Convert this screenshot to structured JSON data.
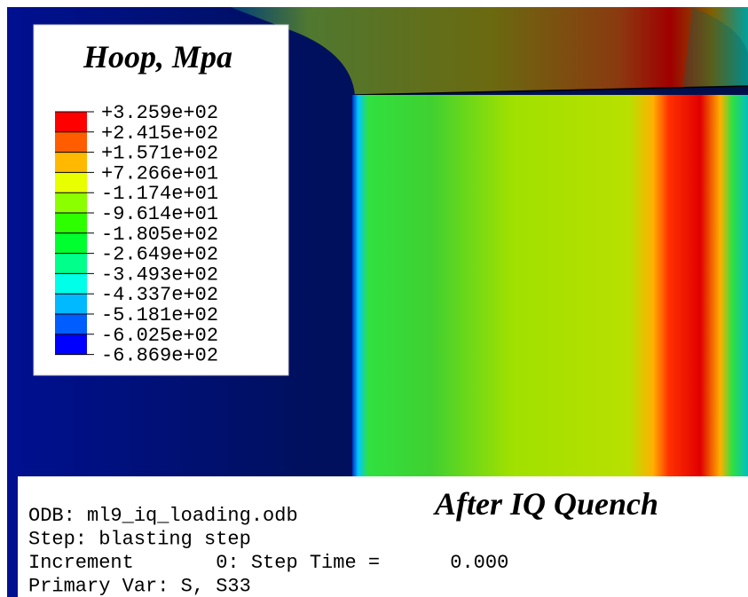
{
  "legend": {
    "title": "Hoop, Mpa",
    "labels": [
      "+3.259e+02",
      "+2.415e+02",
      "+1.571e+02",
      "+7.266e+01",
      "-1.174e+01",
      "-9.614e+01",
      "-1.805e+02",
      "-2.649e+02",
      "-3.493e+02",
      "-4.337e+02",
      "-5.181e+02",
      "-6.025e+02",
      "-6.869e+02"
    ]
  },
  "caption": "After IQ Quench",
  "info": {
    "lines": [
      "ODB: ml9_iq_loading.odb",
      "Step: blasting step",
      "Increment       0: Step Time =      0.000",
      "Primary Var: S, S33"
    ]
  }
}
